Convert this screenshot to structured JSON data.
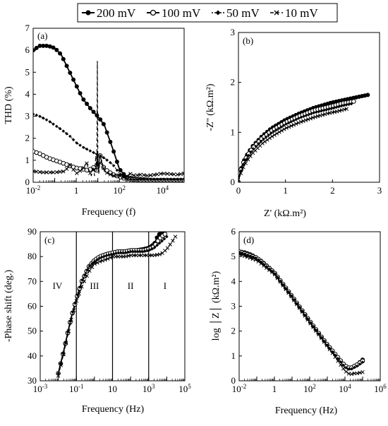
{
  "legend": {
    "items": [
      {
        "label": "200 mV",
        "marker": "filled-circle",
        "dash": "none"
      },
      {
        "label": "100 mV",
        "marker": "open-circle",
        "dash": "none"
      },
      {
        "label": "50 mV",
        "marker": "diamond",
        "dash": "dotted"
      },
      {
        "label": "10 mV",
        "marker": "cross",
        "dash": "dashed"
      }
    ]
  },
  "chart_data": [
    {
      "id": "a",
      "type": "line",
      "panel_label": "(a)",
      "xlabel": "Frequency (f)",
      "ylabel": "THD (%)",
      "x_scale": "log",
      "xlim": [
        0.01,
        100000
      ],
      "ylim": [
        0,
        7
      ],
      "x_ticks": [
        {
          "v": 0.01,
          "label": "10",
          "exp": "-2"
        },
        {
          "v": 1,
          "label": "1",
          "exp": ""
        },
        {
          "v": 100,
          "label": "10",
          "exp": "2"
        },
        {
          "v": 10000,
          "label": "10",
          "exp": "4"
        }
      ],
      "y_ticks": [
        0,
        1,
        2,
        3,
        4,
        5,
        6,
        7
      ],
      "series": [
        {
          "name": "200 mV",
          "color": "#000000",
          "x": [
            0.01,
            0.02,
            0.05,
            0.1,
            0.2,
            0.5,
            1,
            2,
            5,
            10,
            20,
            50,
            100,
            200,
            500,
            1000,
            2000,
            5000,
            10000,
            20000,
            50000,
            100000
          ],
          "y": [
            6.0,
            6.2,
            6.2,
            6.1,
            5.8,
            5.0,
            4.4,
            3.8,
            3.3,
            3.0,
            2.6,
            1.5,
            0.6,
            0.25,
            0.15,
            0.15,
            0.12,
            0.1,
            0.1,
            0.1,
            0.1,
            0.1
          ]
        },
        {
          "name": "100 mV",
          "color": "#000000",
          "x": [
            0.01,
            0.02,
            0.05,
            0.1,
            0.2,
            0.5,
            1,
            2,
            3,
            5,
            7,
            9,
            9.5,
            10,
            11,
            12,
            13,
            15,
            20,
            30,
            50,
            100,
            200,
            500,
            1000,
            5000,
            10000,
            100000
          ],
          "y": [
            1.4,
            1.3,
            1.1,
            1.0,
            0.9,
            0.75,
            0.65,
            0.6,
            0.55,
            0.6,
            0.7,
            0.5,
            1.4,
            0.9,
            0.6,
            1.3,
            1.2,
            0.9,
            0.6,
            0.5,
            0.35,
            0.25,
            0.15,
            0.12,
            0.1,
            0.1,
            0.1,
            0.1
          ]
        },
        {
          "name": "50 mV",
          "color": "#000000",
          "x": [
            0.01,
            0.02,
            0.05,
            0.1,
            0.2,
            0.5,
            1,
            2,
            5,
            10,
            20,
            50,
            100,
            200,
            500,
            1000,
            5000,
            100000
          ],
          "y": [
            3.1,
            3.0,
            2.8,
            2.6,
            2.4,
            2.1,
            1.8,
            1.6,
            1.4,
            1.25,
            1.1,
            0.8,
            0.4,
            0.15,
            0.12,
            0.12,
            0.12,
            0.12
          ]
        },
        {
          "name": "10 mV",
          "color": "#000000",
          "x": [
            0.01,
            0.03,
            0.1,
            0.3,
            0.5,
            1,
            2,
            3,
            4,
            5,
            6,
            7,
            8,
            9,
            9.5,
            10,
            10.5,
            11,
            12,
            15,
            20,
            30,
            50,
            100,
            200,
            300,
            500,
            1000,
            2000,
            5000,
            10000,
            50000,
            100000
          ],
          "y": [
            0.5,
            0.45,
            0.45,
            0.5,
            0.8,
            0.4,
            0.6,
            0.9,
            0.5,
            0.3,
            0.7,
            0.3,
            1.2,
            0.5,
            5.5,
            1.0,
            0.6,
            0.4,
            0.8,
            1.0,
            0.5,
            0.4,
            0.3,
            0.3,
            0.2,
            0.4,
            0.3,
            0.35,
            0.3,
            0.35,
            0.4,
            0.35,
            0.4
          ]
        }
      ]
    },
    {
      "id": "b",
      "type": "line",
      "panel_label": "(b)",
      "xlabel": "Z' (kΩ.m²)",
      "ylabel": "-Z'' (kΩ.m²)",
      "x_scale": "linear",
      "xlim": [
        0,
        3
      ],
      "ylim": [
        0,
        3
      ],
      "x_ticks": [
        0,
        1,
        2,
        3
      ],
      "y_ticks": [
        0,
        1,
        2,
        3
      ],
      "series": [
        {
          "name": "200 mV",
          "color": "#000000",
          "x": [
            0,
            0.02,
            0.05,
            0.1,
            0.2,
            0.3,
            0.5,
            0.7,
            1.0,
            1.3,
            1.6,
            2.0,
            2.4,
            2.75
          ],
          "y": [
            0,
            0.12,
            0.25,
            0.4,
            0.58,
            0.72,
            0.92,
            1.08,
            1.25,
            1.38,
            1.49,
            1.6,
            1.68,
            1.75
          ]
        },
        {
          "name": "100 mV",
          "color": "#000000",
          "x": [
            0,
            0.02,
            0.05,
            0.1,
            0.2,
            0.3,
            0.5,
            0.7,
            1.0,
            1.3,
            1.6,
            2.0,
            2.2,
            2.45
          ],
          "y": [
            0,
            0.11,
            0.24,
            0.38,
            0.55,
            0.68,
            0.88,
            1.03,
            1.2,
            1.33,
            1.44,
            1.53,
            1.58,
            1.62
          ]
        },
        {
          "name": "50 mV",
          "color": "#000000",
          "x": [
            0,
            0.02,
            0.05,
            0.1,
            0.2,
            0.3,
            0.5,
            0.7,
            1.0,
            1.3,
            1.6,
            2.0,
            2.2,
            2.4
          ],
          "y": [
            0,
            0.1,
            0.22,
            0.35,
            0.52,
            0.65,
            0.84,
            0.99,
            1.16,
            1.29,
            1.39,
            1.48,
            1.53,
            1.57
          ]
        },
        {
          "name": "10 mV",
          "color": "#000000",
          "x": [
            0,
            0.02,
            0.05,
            0.1,
            0.2,
            0.3,
            0.5,
            0.7,
            1.0,
            1.3,
            1.6,
            1.9,
            2.1,
            2.3
          ],
          "y": [
            0,
            0.08,
            0.18,
            0.3,
            0.45,
            0.58,
            0.77,
            0.91,
            1.08,
            1.2,
            1.3,
            1.38,
            1.42,
            1.47
          ]
        }
      ]
    },
    {
      "id": "c",
      "type": "line",
      "panel_label": "(c)",
      "xlabel": "Frequency (Hz)",
      "ylabel": "-Phase shift (deg.)",
      "x_scale": "log",
      "xlim": [
        0.001,
        100000
      ],
      "ylim": [
        30,
        90
      ],
      "x_ticks": [
        {
          "v": 0.001,
          "label": "10",
          "exp": "-3"
        },
        {
          "v": 0.1,
          "label": "10",
          "exp": "-1"
        },
        {
          "v": 10,
          "label": "10",
          "exp": ""
        },
        {
          "v": 1000,
          "label": "10",
          "exp": "3"
        },
        {
          "v": 100000,
          "label": "10",
          "exp": "5"
        }
      ],
      "y_ticks": [
        30,
        40,
        50,
        60,
        70,
        80,
        90
      ],
      "regions": [
        {
          "label": "IV",
          "x": 0.009
        },
        {
          "label": "III",
          "x": 1
        },
        {
          "label": "II",
          "x": 100
        },
        {
          "label": "I",
          "x": 8000
        }
      ],
      "region_boundaries": [
        0.1,
        10,
        1000
      ],
      "series": [
        {
          "name": "200 mV",
          "color": "#000000",
          "x": [
            0.01,
            0.02,
            0.05,
            0.1,
            0.2,
            0.5,
            1,
            2,
            5,
            10,
            20,
            50,
            100,
            200,
            500,
            1000,
            2000,
            3000,
            5000,
            7000
          ],
          "y": [
            33,
            42,
            55,
            63,
            70,
            76,
            78.5,
            80,
            81,
            81.5,
            82,
            82,
            82.5,
            82.5,
            83,
            83.5,
            85,
            88,
            90,
            90
          ]
        },
        {
          "name": "100 mV",
          "color": "#000000",
          "x": [
            0.01,
            0.02,
            0.05,
            0.1,
            0.2,
            0.5,
            1,
            2,
            5,
            10,
            20,
            50,
            100,
            200,
            500,
            1000,
            2000,
            3000,
            5000,
            8000
          ],
          "y": [
            33,
            42,
            55,
            63,
            70,
            76,
            78.5,
            80,
            81,
            81.5,
            82,
            82,
            82.5,
            82.5,
            82.5,
            83,
            84,
            86,
            88,
            89
          ]
        },
        {
          "name": "50 mV",
          "color": "#000000",
          "x": [
            0.01,
            0.02,
            0.05,
            0.1,
            0.2,
            0.5,
            1,
            2,
            5,
            10,
            20,
            50,
            100,
            200,
            500,
            1000,
            2000,
            5000,
            10000
          ],
          "y": [
            33,
            42,
            55,
            63,
            70,
            76,
            78,
            79.5,
            80.5,
            81,
            81.5,
            81.5,
            82,
            82,
            82,
            82.5,
            83.5,
            86,
            88
          ]
        },
        {
          "name": "10 mV",
          "color": "#000000",
          "x": [
            0.01,
            0.02,
            0.05,
            0.1,
            0.2,
            0.5,
            1,
            2,
            5,
            10,
            20,
            50,
            100,
            200,
            500,
            1000,
            2000,
            5000,
            10000,
            20000,
            30000
          ],
          "y": [
            32,
            41,
            54,
            62,
            68,
            74,
            77,
            78,
            79,
            80,
            80,
            80,
            80.5,
            80.5,
            80.5,
            80.5,
            80.5,
            81,
            83,
            86,
            88
          ]
        }
      ]
    },
    {
      "id": "d",
      "type": "line",
      "panel_label": "(d)",
      "xlabel": "Frequency (Hz)",
      "ylabel": "log │Z│ (kΩ.m²)",
      "x_scale": "log",
      "xlim": [
        0.01,
        1000000
      ],
      "ylim": [
        0,
        6
      ],
      "x_ticks": [
        {
          "v": 0.01,
          "label": "10",
          "exp": "-2"
        },
        {
          "v": 1,
          "label": "1",
          "exp": ""
        },
        {
          "v": 100,
          "label": "10",
          "exp": "2"
        },
        {
          "v": 10000,
          "label": "10",
          "exp": "4"
        },
        {
          "v": 1000000,
          "label": "10",
          "exp": "6"
        }
      ],
      "y_ticks": [
        0,
        1,
        2,
        3,
        4,
        5,
        6
      ],
      "series": [
        {
          "name": "200 mV",
          "color": "#000000",
          "x": [
            0.01,
            0.02,
            0.05,
            0.1,
            0.2,
            0.5,
            1,
            10,
            100,
            1000,
            5000,
            10000,
            15000,
            20000,
            40000,
            70000,
            100000
          ],
          "y": [
            5.2,
            5.17,
            5.07,
            4.95,
            4.8,
            4.55,
            4.35,
            3.4,
            2.4,
            1.45,
            0.85,
            0.6,
            0.5,
            0.5,
            0.6,
            0.75,
            0.85
          ]
        },
        {
          "name": "100 mV",
          "color": "#000000",
          "x": [
            0.01,
            0.1,
            1,
            10,
            100,
            1000,
            10000,
            20000,
            50000,
            100000
          ],
          "y": [
            5.2,
            4.95,
            4.35,
            3.4,
            2.4,
            1.45,
            0.6,
            0.5,
            0.65,
            0.8
          ]
        },
        {
          "name": "50 mV",
          "color": "#000000",
          "x": [
            0.01,
            0.1,
            1,
            10,
            100,
            1000,
            10000,
            20000,
            50000,
            100000
          ],
          "y": [
            5.18,
            4.93,
            4.33,
            3.38,
            2.38,
            1.42,
            0.55,
            0.45,
            0.6,
            0.75
          ]
        },
        {
          "name": "10 mV",
          "color": "#000000",
          "x": [
            0.01,
            0.1,
            1,
            10,
            100,
            1000,
            10000,
            20000,
            30000,
            50000,
            100000
          ],
          "y": [
            5.1,
            4.85,
            4.3,
            3.35,
            2.35,
            1.4,
            0.4,
            0.25,
            0.3,
            0.3,
            0.35
          ]
        }
      ]
    }
  ]
}
